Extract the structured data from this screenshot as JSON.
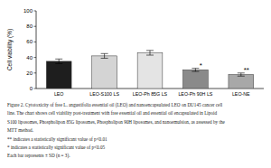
{
  "chart_data": {
    "type": "bar",
    "y_label": "Cell viability (%)",
    "categories": [
      "LEO",
      "LEO-S100 LS",
      "LEO-Ph 85G LS",
      "LEO-Ph 90H LS",
      "LEO-NE"
    ],
    "values": [
      35,
      42,
      46,
      24,
      18
    ],
    "errors": [
      3,
      3,
      3,
      2,
      2
    ],
    "annotations": [
      null,
      null,
      null,
      "*",
      "**"
    ],
    "colors": [
      "#1e1e1e",
      "#d4d4d4",
      "#e4e4e4",
      "#8a8a8a",
      "#a8a8a8"
    ],
    "ylim": [
      0,
      100
    ],
    "yticks": [
      0,
      20,
      40,
      60,
      80,
      100
    ],
    "grid": false,
    "caption": [
      "Figure 2. Cytotoxicity of free L. angustifolia essential oil (LEO) and nanoencapsulated LEO on DU145 cancer cell",
      "line. The chart shows cell viability post-treatment with free essential oil and essential oil encapsulated in Lipoid",
      "S100 liposomes, Phospholipon 85G liposomes, Phospholipon 90H liposomes, and nanoemulsion, as assessed by the",
      "MTT method.",
      "** indicates a statistically significant value of p<0.01",
      "* indicates a statistically significant value of p<0.05",
      "Each bar represents ± SD (n = 3)."
    ]
  }
}
